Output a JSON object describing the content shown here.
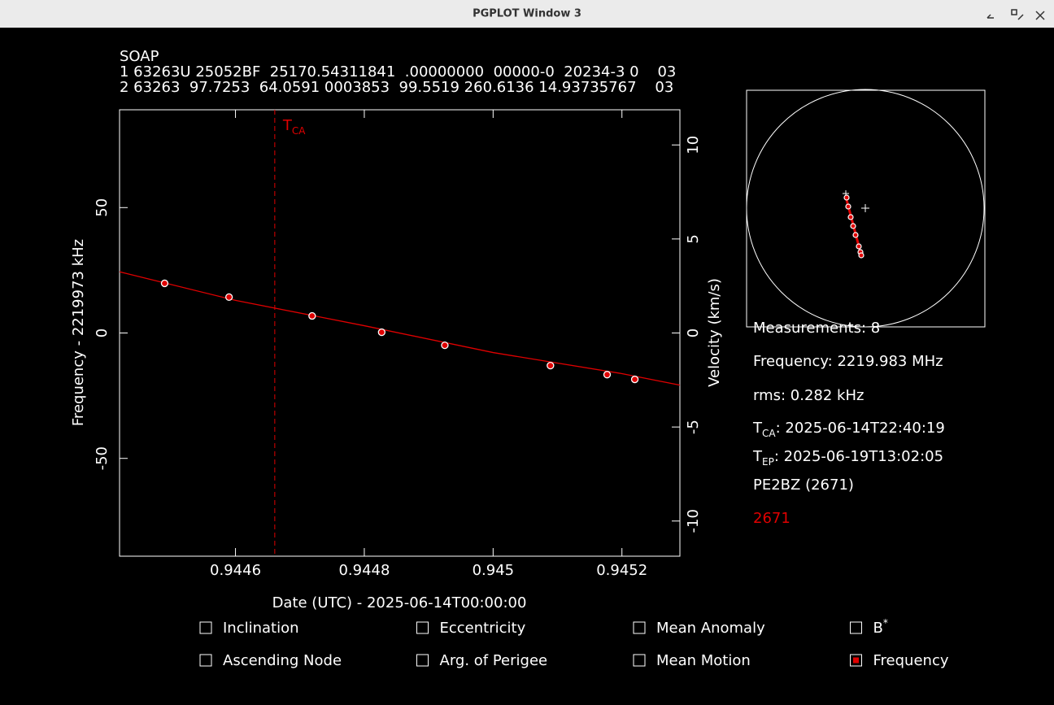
{
  "window": {
    "title": "PGPLOT Window 3"
  },
  "header": {
    "name": "SOAP",
    "tle": [
      "1 63263U 25052BF  25170.54311841  .00000000  00000-0  20234-3 0    03",
      "2 63263  97.7253  64.0591 0003853  99.5519 260.6136 14.93735767    03"
    ]
  },
  "chart_data": {
    "type": "line",
    "xlabel": "Date (UTC) - 2025-06-14T00:00:00",
    "ylabel": "Frequency - 2219973 kHz",
    "y2label": "Velocity (km/s)",
    "xlim": [
      0.94442,
      0.94529
    ],
    "xticks": [
      0.9446,
      0.9448,
      0.945,
      0.9452
    ],
    "ylim": [
      -89,
      89
    ],
    "yticks": [
      -50,
      0,
      50
    ],
    "y2lim": [
      -11.87,
      11.87
    ],
    "y2ticks": [
      -10,
      -5,
      0,
      5,
      10
    ],
    "series": [
      {
        "color": "#e00000",
        "x": [
          0.94442,
          0.9446,
          0.9448,
          0.945,
          0.9452,
          0.94529
        ],
        "values": [
          24.4,
          13.0,
          2.9,
          -7.8,
          -16.2,
          -20.8
        ]
      },
      {
        "color": "#e00000",
        "marker": "circle",
        "x": [
          0.94449,
          0.94459,
          0.944719,
          0.944827,
          0.944925,
          0.945089,
          0.945177,
          0.94522
        ],
        "values": [
          19.8,
          14.3,
          6.8,
          0.3,
          -4.9,
          -13.0,
          -16.6,
          -18.5
        ]
      }
    ],
    "vline": {
      "x": 0.944661,
      "label": "T",
      "label_sub": "CA",
      "color": "#e00000"
    }
  },
  "info": {
    "measurements": "Measurements: 8",
    "frequency": "Frequency: 2219.983 MHz",
    "rms": "rms: 0.282 kHz",
    "tca": {
      "main": "T",
      "sub": "CA",
      "text": ": 2025-06-14T22:40:19"
    },
    "tep": {
      "main": "T",
      "sub": "EP",
      "text": ": 2025-06-19T13:02:05"
    },
    "station": "PE2BZ (2671)",
    "site": "2671"
  },
  "checkboxes": [
    {
      "label": "Inclination",
      "checked": false
    },
    {
      "label": "Ascending Node",
      "checked": false
    },
    {
      "label": "Eccentricity",
      "checked": false
    },
    {
      "label": "Arg. of Perigee",
      "checked": false
    },
    {
      "label": "Mean Anomaly",
      "checked": false
    },
    {
      "label": "Mean Motion",
      "checked": false
    },
    {
      "label": "B",
      "sup": "*",
      "checked": false
    },
    {
      "label": "Frequency",
      "checked": true
    }
  ]
}
